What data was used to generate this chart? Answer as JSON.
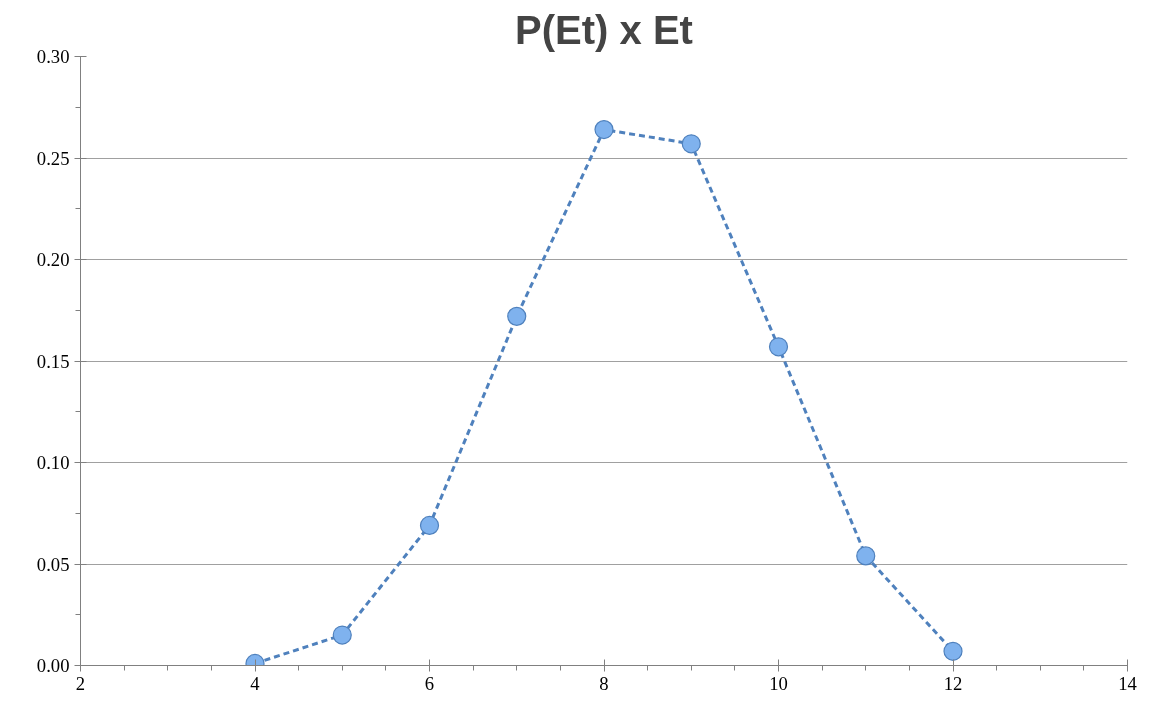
{
  "chart_data": {
    "type": "line",
    "title": "P(Et) x Et",
    "x": [
      4,
      5,
      6,
      7,
      8,
      9,
      10,
      11,
      12
    ],
    "series": [
      {
        "color": "#4f81bd",
        "values": [
          0.001,
          0.015,
          0.069,
          0.172,
          0.264,
          0.257,
          0.157,
          0.054,
          0.007
        ]
      }
    ],
    "xlim": [
      2,
      14
    ],
    "xticks": [
      2,
      4,
      6,
      8,
      10,
      12,
      14
    ],
    "ylim": [
      0,
      0.3
    ],
    "yticks": [
      {
        "value": 0,
        "label": "0.00"
      },
      {
        "value": 0.05,
        "label": "0.05"
      },
      {
        "value": 0.1,
        "label": "0.10"
      },
      {
        "value": 0.15,
        "label": "0.15"
      },
      {
        "value": 0.2,
        "label": "0.20"
      },
      {
        "value": 0.25,
        "label": "0.25"
      },
      {
        "value": 0.3,
        "label": "0.30"
      }
    ],
    "grid": "y",
    "marker": "circle",
    "line_style": "dashed"
  }
}
